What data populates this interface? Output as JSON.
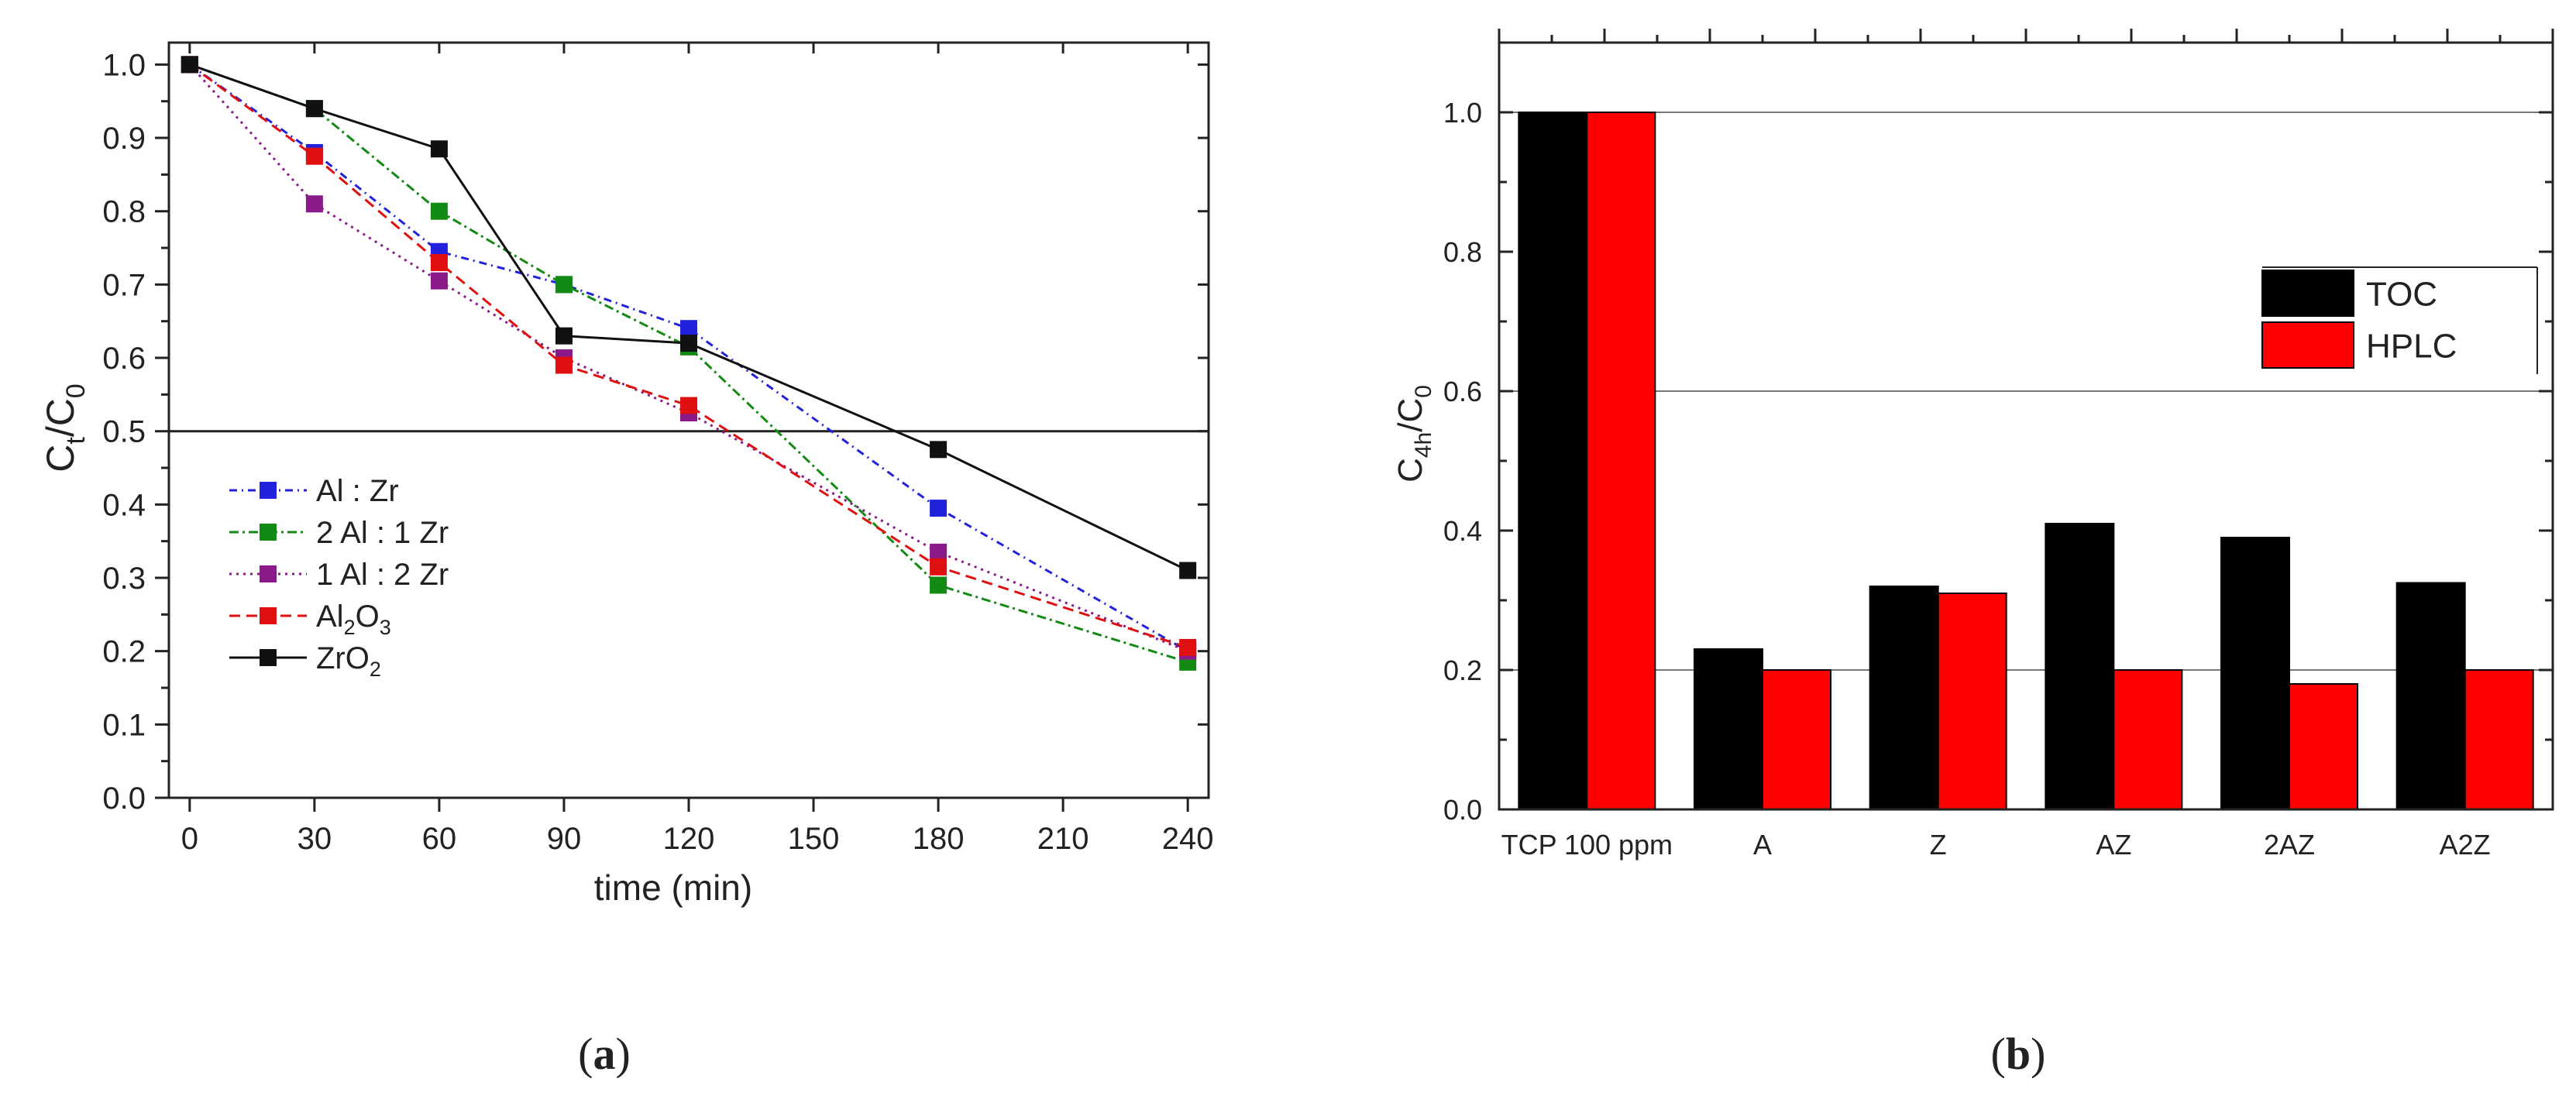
{
  "chart_data": [
    {
      "panel": "a",
      "caption": "a",
      "type": "line",
      "xlabel": "time (min)",
      "ylabel": {
        "main": "C",
        "sub1": "t",
        "mid": "/C",
        "sub2": "0"
      },
      "xlim": [
        -5,
        245
      ],
      "ylim": [
        0,
        1.03
      ],
      "xticks": [
        0,
        30,
        60,
        90,
        120,
        150,
        180,
        210,
        240
      ],
      "yticks": [
        0.0,
        0.1,
        0.2,
        0.3,
        0.4,
        0.5,
        0.6,
        0.7,
        0.8,
        0.9,
        1.0
      ],
      "tick_labels_y": [
        "0.0",
        "0.1",
        "0.2",
        "0.3",
        "0.4",
        "0.5",
        "0.6",
        "0.7",
        "0.8",
        "0.9",
        "1.0"
      ],
      "tick_labels_x": [
        "0",
        "30",
        "60",
        "90",
        "120",
        "150",
        "180",
        "210",
        "240"
      ],
      "reference_line": 0.5,
      "series": [
        {
          "name": "Al : Zr",
          "legend": [
            " Al : Zr"
          ],
          "color": "#2222dd",
          "dash": "10,6,2,6",
          "x": [
            0,
            30,
            60,
            90,
            120,
            180,
            240
          ],
          "y": [
            1.0,
            0.88,
            0.745,
            0.7,
            0.64,
            0.395,
            0.2
          ]
        },
        {
          "name": "2 Al : 1 Zr",
          "legend": [
            "2 Al : 1 Zr"
          ],
          "color": "#138a13",
          "dash": "12,5,3,5",
          "x": [
            0,
            30,
            60,
            90,
            120,
            180,
            240
          ],
          "y": [
            1.0,
            0.94,
            0.8,
            0.7,
            0.615,
            0.29,
            0.185
          ]
        },
        {
          "name": "1 Al : 2 Zr",
          "legend": [
            "1 Al : 2 Zr"
          ],
          "color": "#8a1a8a",
          "dash": "3,6",
          "x": [
            0,
            30,
            60,
            90,
            120,
            180,
            240
          ],
          "y": [
            1.0,
            0.81,
            0.705,
            0.6,
            0.525,
            0.335,
            0.2
          ]
        },
        {
          "name": "Al2O3",
          "legend": [
            "Al",
            "2",
            "O",
            "3"
          ],
          "color": "#e01010",
          "dash": "14,8",
          "x": [
            0,
            30,
            60,
            90,
            120,
            180,
            240
          ],
          "y": [
            1.0,
            0.875,
            0.73,
            0.59,
            0.535,
            0.315,
            0.205
          ]
        },
        {
          "name": "ZrO2",
          "legend": [
            "ZrO",
            "2"
          ],
          "color": "#111111",
          "dash": "",
          "x": [
            0,
            30,
            60,
            90,
            120,
            180,
            240
          ],
          "y": [
            1.0,
            0.94,
            0.885,
            0.63,
            0.62,
            0.475,
            0.31
          ]
        }
      ]
    },
    {
      "panel": "b",
      "caption": "b",
      "type": "bar",
      "xlabel": "",
      "ylabel": {
        "main": "C",
        "sub1": "4h",
        "mid": "/C",
        "sub2": "0"
      },
      "ylim": [
        0,
        1.1
      ],
      "yticks": [
        0.0,
        0.2,
        0.4,
        0.6,
        0.8,
        1.0
      ],
      "tick_labels_y": [
        "0.0",
        "0.2",
        "0.4",
        "0.6",
        "0.8",
        "1.0"
      ],
      "gridlines": [
        0.2,
        0.6,
        1.0
      ],
      "categories": [
        "TCP 100 ppm",
        "A",
        "Z",
        "AZ",
        "2AZ",
        "A2Z"
      ],
      "legend_position": "center-right",
      "series": [
        {
          "name": "TOC",
          "color": "#000000",
          "values": [
            1.0,
            0.23,
            0.32,
            0.41,
            0.39,
            0.325
          ]
        },
        {
          "name": "HPLC",
          "color": "#ff0000",
          "values": [
            1.0,
            0.2,
            0.31,
            0.2,
            0.18,
            0.2
          ]
        }
      ]
    }
  ]
}
